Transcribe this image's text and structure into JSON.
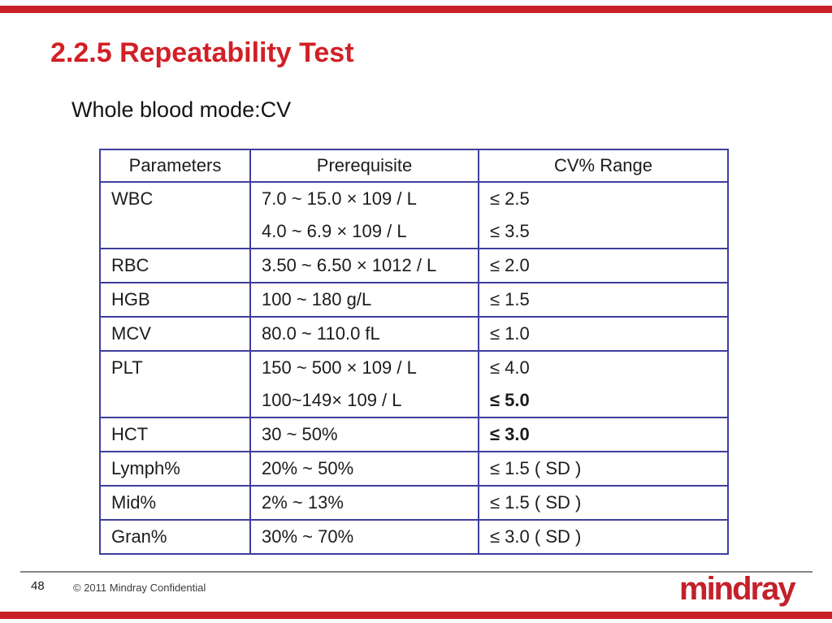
{
  "slide": {
    "title": "2.2.5 Repeatability Test",
    "subtitle": "Whole blood mode:CV"
  },
  "table": {
    "headers": [
      "Parameters",
      "Prerequisite",
      "CV% Range"
    ],
    "rows": [
      {
        "parameter": "WBC",
        "prerequisite": [
          "7.0 ~ 15.0 × 109 / L",
          "4.0 ~ 6.9 × 109 / L"
        ],
        "cv": [
          "≤ 2.5",
          "≤ 3.5"
        ],
        "cv_bold": [
          false,
          false
        ]
      },
      {
        "parameter": "RBC",
        "prerequisite": [
          "3.50 ~ 6.50 × 1012 / L"
        ],
        "cv": [
          "≤ 2.0"
        ],
        "cv_bold": [
          false
        ]
      },
      {
        "parameter": "HGB",
        "prerequisite": [
          "100 ~ 180 g/L"
        ],
        "cv": [
          "≤ 1.5"
        ],
        "cv_bold": [
          false
        ]
      },
      {
        "parameter": "MCV",
        "prerequisite": [
          "80.0 ~ 110.0 fL"
        ],
        "cv": [
          "≤ 1.0"
        ],
        "cv_bold": [
          false
        ]
      },
      {
        "parameter": "PLT",
        "prerequisite": [
          "150 ~ 500 × 109 / L",
          "100~149× 109 / L"
        ],
        "cv": [
          "≤ 4.0",
          "≤ 5.0"
        ],
        "cv_bold": [
          false,
          true
        ]
      },
      {
        "parameter": "HCT",
        "prerequisite": [
          "30 ~ 50%"
        ],
        "cv": [
          "≤ 3.0"
        ],
        "cv_bold": [
          true
        ]
      },
      {
        "parameter": "Lymph%",
        "prerequisite": [
          "20% ~ 50%"
        ],
        "cv": [
          "≤ 1.5 ( SD )"
        ],
        "cv_bold": [
          false
        ]
      },
      {
        "parameter": "Mid%",
        "prerequisite": [
          "2% ~ 13%"
        ],
        "cv": [
          "≤ 1.5 ( SD )"
        ],
        "cv_bold": [
          false
        ]
      },
      {
        "parameter": "Gran%",
        "prerequisite": [
          "30% ~ 70%"
        ],
        "cv": [
          "≤ 3.0 ( SD )"
        ],
        "cv_bold": [
          false
        ]
      }
    ]
  },
  "footer": {
    "page_number": "48",
    "copyright": "© 2011 Mindray Confidential",
    "logo_text": "mindray"
  },
  "colors": {
    "accent_bar_red": "#c72127",
    "title_red": "#d12026",
    "table_border_blue": "#3e3e9d",
    "logo_red": "#c4202a",
    "text_black": "#1a1a1a"
  }
}
